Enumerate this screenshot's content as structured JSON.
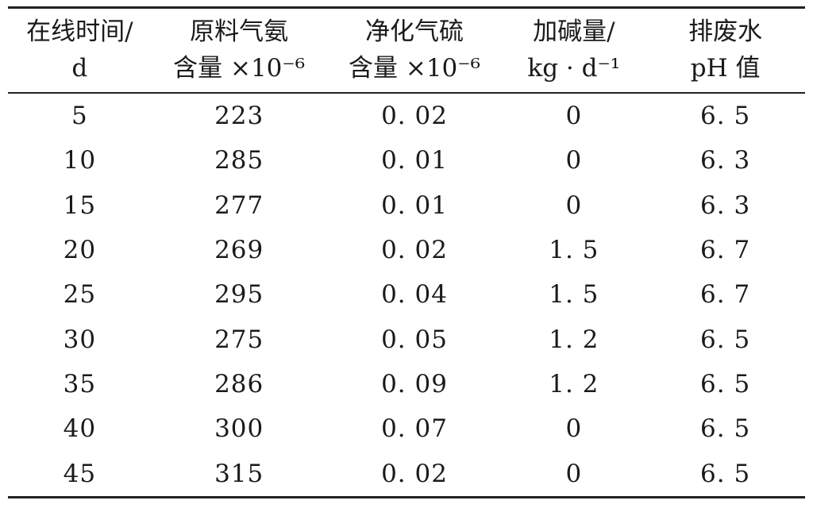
{
  "table": {
    "headers": [
      {
        "line1": "在线时间/",
        "line2": "d"
      },
      {
        "line1": "原料气氨",
        "line2": "含量 ×10⁻⁶"
      },
      {
        "line1": "净化气硫",
        "line2": "含量 ×10⁻⁶"
      },
      {
        "line1": "加碱量/",
        "line2": "kg · d⁻¹"
      },
      {
        "line1": "排废水",
        "line2": "pH 值"
      }
    ],
    "rows": [
      [
        "5",
        "223",
        "0. 02",
        "0",
        "6. 5"
      ],
      [
        "10",
        "285",
        "0. 01",
        "0",
        "6. 3"
      ],
      [
        "15",
        "277",
        "0. 01",
        "0",
        "6. 3"
      ],
      [
        "20",
        "269",
        "0. 02",
        "1. 5",
        "6. 7"
      ],
      [
        "25",
        "295",
        "0. 04",
        "1. 5",
        "6. 7"
      ],
      [
        "30",
        "275",
        "0. 05",
        "1. 2",
        "6. 5"
      ],
      [
        "35",
        "286",
        "0. 09",
        "1. 2",
        "6. 5"
      ],
      [
        "40",
        "300",
        "0. 07",
        "0",
        "6. 5"
      ],
      [
        "45",
        "315",
        "0. 02",
        "0",
        "6. 5"
      ]
    ]
  }
}
